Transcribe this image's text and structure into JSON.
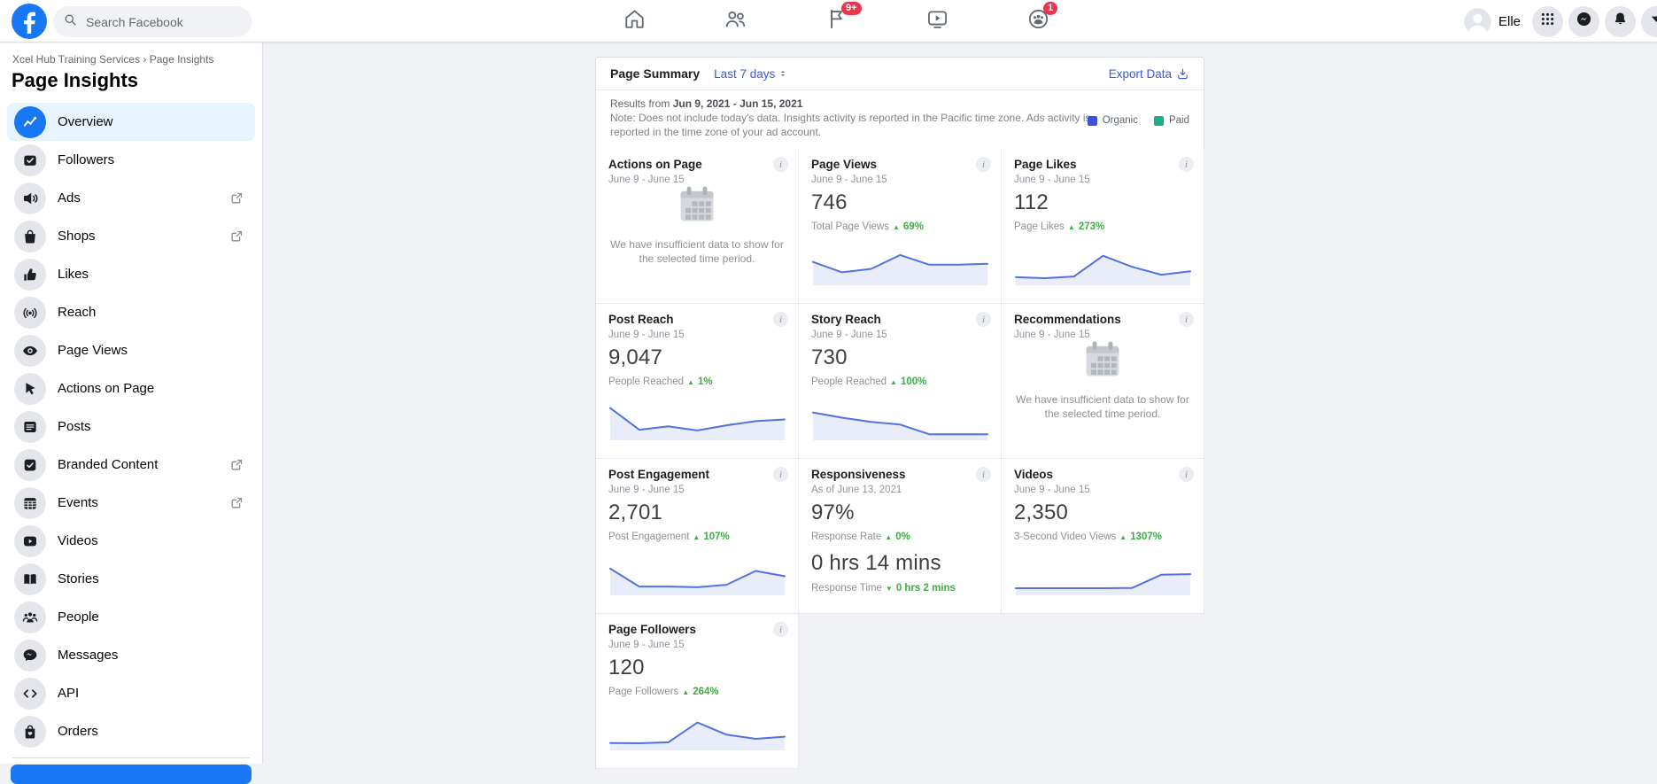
{
  "topnav": {
    "search_placeholder": "Search Facebook",
    "user_name": "Elle",
    "nav_items": [
      {
        "icon": "home",
        "name": "home"
      },
      {
        "icon": "friends",
        "name": "friends"
      },
      {
        "icon": "pages",
        "name": "pages",
        "badge": "9+"
      },
      {
        "icon": "watch",
        "name": "watch"
      },
      {
        "icon": "groups",
        "name": "groups",
        "badge": "1"
      }
    ],
    "action_buttons": [
      {
        "icon": "menu",
        "name": "apps-menu"
      },
      {
        "icon": "messenger",
        "name": "messenger"
      },
      {
        "icon": "bell",
        "name": "notifications"
      },
      {
        "icon": "chevron",
        "name": "account-menu"
      }
    ]
  },
  "sidebar": {
    "breadcrumb": "Xcel Hub Training Services › Page Insights",
    "title": "Page Insights",
    "items": [
      {
        "label": "Overview",
        "icon": "overview",
        "active": true
      },
      {
        "label": "Followers",
        "icon": "followers"
      },
      {
        "label": "Ads",
        "icon": "ads",
        "external": true
      },
      {
        "label": "Shops",
        "icon": "shops",
        "external": true
      },
      {
        "label": "Likes",
        "icon": "likes"
      },
      {
        "label": "Reach",
        "icon": "reach"
      },
      {
        "label": "Page Views",
        "icon": "page-views"
      },
      {
        "label": "Actions on Page",
        "icon": "actions"
      },
      {
        "label": "Posts",
        "icon": "posts"
      },
      {
        "label": "Branded Content",
        "icon": "branded",
        "external": true
      },
      {
        "label": "Events",
        "icon": "events",
        "external": true
      },
      {
        "label": "Videos",
        "icon": "videos"
      },
      {
        "label": "Stories",
        "icon": "stories"
      },
      {
        "label": "People",
        "icon": "people"
      },
      {
        "label": "Messages",
        "icon": "messages"
      },
      {
        "label": "API",
        "icon": "api"
      },
      {
        "label": "Orders",
        "icon": "orders"
      }
    ]
  },
  "panel": {
    "title": "Page Summary",
    "range_label": "Last 7 days",
    "export_label": "Export Data",
    "results_prefix": "Results from",
    "results_range": "Jun 9, 2021 - Jun 15, 2021",
    "note": "Note: Does not include today's data. Insights activity is reported in the Pacific time zone. Ads activity is reported in the time zone of your ad account.",
    "legend": [
      {
        "label": "Organic",
        "color": "#3d50e0"
      },
      {
        "label": "Paid",
        "color": "#17b08b"
      }
    ]
  },
  "cards": [
    {
      "name": "actions-on-page",
      "title": "Actions on Page",
      "subtitle": "June 9 - June 15",
      "type": "empty",
      "empty_text": "We have insufficient data to show for the selected time period."
    },
    {
      "name": "page-views",
      "title": "Page Views",
      "subtitle": "June 9 - June 15",
      "type": "spark",
      "value": "746",
      "label": "Total Page Views",
      "delta": "69%",
      "delta_dir": "up",
      "spark": [
        0.52,
        0.22,
        0.32,
        0.72,
        0.44,
        0.44,
        0.47
      ]
    },
    {
      "name": "page-likes",
      "title": "Page Likes",
      "subtitle": "June 9 - June 15",
      "type": "spark",
      "value": "112",
      "label": "Page Likes",
      "delta": "273%",
      "delta_dir": "up",
      "spark": [
        0.08,
        0.05,
        0.1,
        0.7,
        0.38,
        0.15,
        0.25
      ]
    },
    {
      "name": "post-reach",
      "title": "Post Reach",
      "subtitle": "June 9 - June 15",
      "type": "spark",
      "value": "9,047",
      "label": "People Reached",
      "delta": "1%",
      "delta_dir": "up",
      "spark": [
        0.78,
        0.15,
        0.25,
        0.13,
        0.28,
        0.4,
        0.45
      ]
    },
    {
      "name": "story-reach",
      "title": "Story Reach",
      "subtitle": "June 9 - June 15",
      "type": "spark",
      "value": "730",
      "label": "People Reached",
      "delta": "100%",
      "delta_dir": "up",
      "spark": [
        0.65,
        0.5,
        0.38,
        0.3,
        0.02,
        0.02,
        0.02
      ]
    },
    {
      "name": "recommendations",
      "title": "Recommendations",
      "subtitle": "June 9 - June 15",
      "type": "empty",
      "empty_text": "We have insufficient data to show for the selected time period."
    },
    {
      "name": "post-engagement",
      "title": "Post Engagement",
      "subtitle": "June 9 - June 15",
      "type": "spark",
      "value": "2,701",
      "label": "Post Engagement",
      "delta": "107%",
      "delta_dir": "up",
      "spark": [
        0.62,
        0.1,
        0.1,
        0.08,
        0.15,
        0.55,
        0.4
      ]
    },
    {
      "name": "responsiveness",
      "title": "Responsiveness",
      "subtitle": "As of June 13, 2021",
      "type": "double",
      "value": "97%",
      "label": "Response Rate",
      "delta": "0%",
      "delta_dir": "up",
      "value2": "0 hrs 14 mins",
      "label2": "Response Time",
      "delta2": "0 hrs 2 mins",
      "delta2_dir": "down"
    },
    {
      "name": "videos",
      "title": "Videos",
      "subtitle": "June 9 - June 15",
      "type": "spark",
      "value": "2,350",
      "label": "3-Second Video Views",
      "delta": "1307%",
      "delta_dir": "up",
      "spark": [
        0.05,
        0.05,
        0.05,
        0.05,
        0.06,
        0.44,
        0.46
      ]
    },
    {
      "name": "page-followers",
      "title": "Page Followers",
      "subtitle": "June 9 - June 15",
      "type": "spark",
      "value": "120",
      "label": "Page Followers",
      "delta": "264%",
      "delta_dir": "up",
      "spark": [
        0.06,
        0.05,
        0.08,
        0.65,
        0.3,
        0.18,
        0.24
      ]
    }
  ],
  "colors": {
    "brand_blue": "#1877f2",
    "link_blue": "#3b5bdb",
    "delta_green": "#3dae42",
    "badge_red": "#e8364e",
    "sparkline": "#5472de",
    "sparkline_fill": "#e8edf9",
    "organic": "#3d50e0",
    "paid": "#17b08b",
    "page_bg": "#f0f2f5",
    "active_item_bg": "#e7f3ff"
  }
}
